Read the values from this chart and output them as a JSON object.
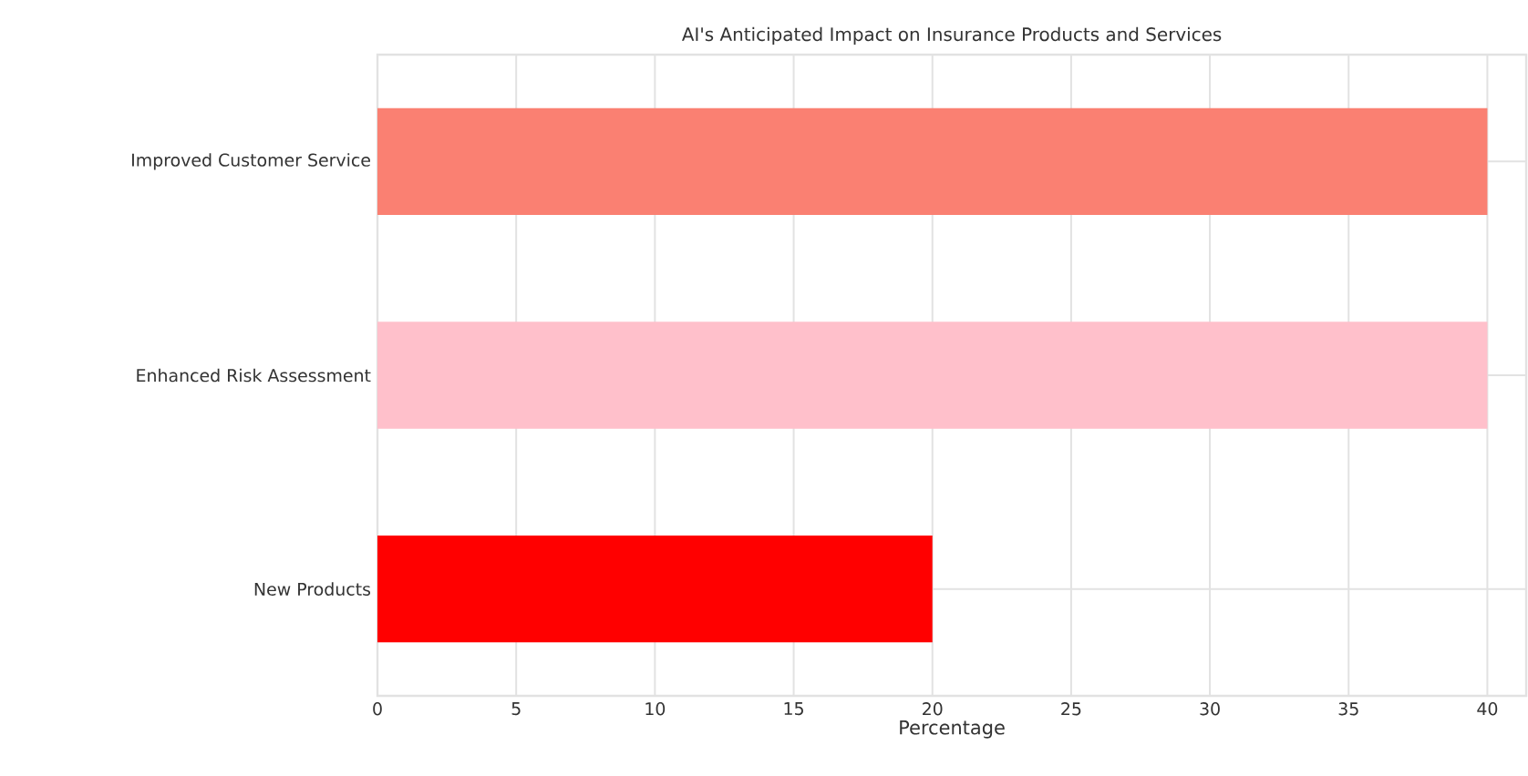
{
  "chart_data": {
    "type": "bar",
    "orientation": "horizontal",
    "title": "AI's Anticipated Impact on Insurance Products and Services",
    "xlabel": "Percentage",
    "categories": [
      "Improved Customer Service",
      "Enhanced Risk Assessment",
      "New Products"
    ],
    "values": [
      40,
      40,
      20
    ],
    "colors": [
      "#fa8072",
      "#ffc0cb",
      "#ff0000"
    ],
    "xlim": [
      0,
      41.4
    ],
    "xticks": [
      0,
      5,
      10,
      15,
      20,
      25,
      30,
      35,
      40
    ],
    "grid": true
  }
}
